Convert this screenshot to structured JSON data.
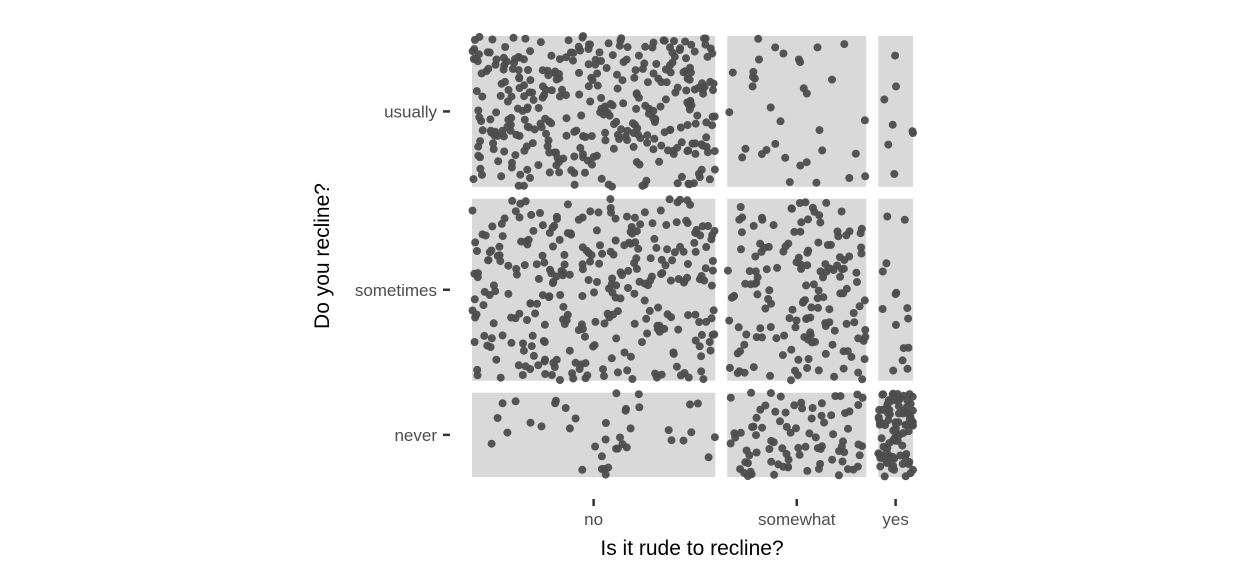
{
  "chart_data": {
    "type": "mosaic-jitter",
    "xlabel": "Is it rude to recline?",
    "ylabel": "Do you recline?",
    "x_categories": [
      "no",
      "somewhat",
      "yes"
    ],
    "y_categories": [
      "never",
      "sometimes",
      "usually"
    ],
    "x_proportions": [
      0.56,
      0.32,
      0.08
    ],
    "y_proportions": [
      0.19,
      0.41,
      0.34
    ],
    "cell_counts": [
      [
        40,
        85,
        90
      ],
      [
        300,
        160,
        15
      ],
      [
        350,
        35,
        8
      ]
    ],
    "grid": false,
    "legend": "none",
    "colors": {
      "tile": "#d9d9d9",
      "point": "#4d4d4d",
      "tick_label": "#4d4d4d",
      "axis_title": "#000000"
    }
  }
}
